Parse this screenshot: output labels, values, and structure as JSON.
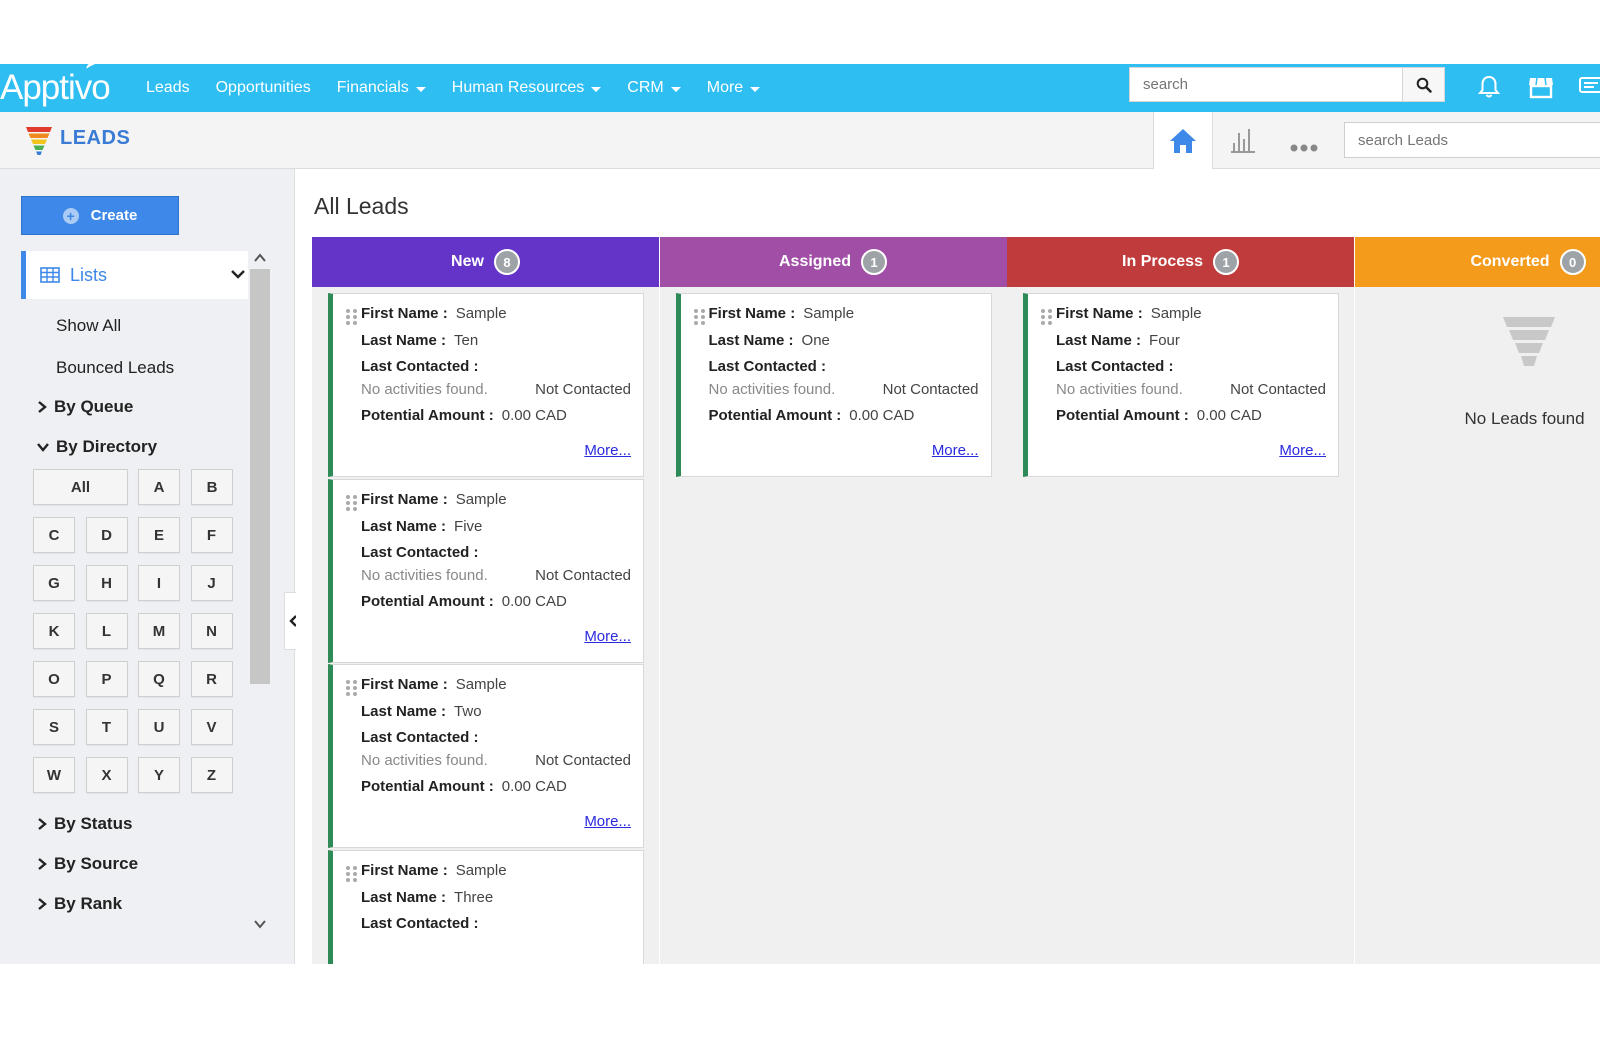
{
  "brand": {
    "logo_text": "Apptivo"
  },
  "topnav": {
    "items": [
      {
        "label": "Leads",
        "has_caret": false
      },
      {
        "label": "Opportunities",
        "has_caret": false
      },
      {
        "label": "Financials",
        "has_caret": true
      },
      {
        "label": "Human Resources",
        "has_caret": true
      },
      {
        "label": "CRM",
        "has_caret": true
      },
      {
        "label": "More",
        "has_caret": true
      }
    ],
    "search_placeholder": "search"
  },
  "subheader": {
    "title": "LEADS",
    "search_placeholder": "search Leads"
  },
  "sidebar": {
    "create_label": "Create",
    "lists_label": "Lists",
    "links": [
      "Show All",
      "Bounced Leads"
    ],
    "groups": {
      "by_queue": "By Queue",
      "by_directory": "By Directory",
      "by_status": "By Status",
      "by_source": "By Source",
      "by_rank": "By Rank"
    },
    "letters": [
      "All",
      "A",
      "B",
      "C",
      "D",
      "E",
      "F",
      "G",
      "H",
      "I",
      "J",
      "K",
      "L",
      "M",
      "N",
      "O",
      "P",
      "Q",
      "R",
      "S",
      "T",
      "U",
      "V",
      "W",
      "X",
      "Y",
      "Z"
    ]
  },
  "main": {
    "title": "All Leads",
    "labels": {
      "first_name": "First Name :",
      "last_name": "Last Name :",
      "last_contacted": "Last Contacted :",
      "no_activities": "No activities found.",
      "potential_amount": "Potential Amount :",
      "more": "More..."
    },
    "columns": [
      {
        "title": "New",
        "count": "8",
        "color": "#6434c9",
        "cards": [
          {
            "first": "Sample",
            "last": "Ten",
            "status": "Not Contacted",
            "amount": "0.00 CAD"
          },
          {
            "first": "Sample",
            "last": "Five",
            "status": "Not Contacted",
            "amount": "0.00 CAD"
          },
          {
            "first": "Sample",
            "last": "Two",
            "status": "Not Contacted",
            "amount": "0.00 CAD"
          },
          {
            "first": "Sample",
            "last": "Three",
            "status": "",
            "amount": ""
          }
        ]
      },
      {
        "title": "Assigned",
        "count": "1",
        "color": "#a04ea6",
        "cards": [
          {
            "first": "Sample",
            "last": "One",
            "status": "Not Contacted",
            "amount": "0.00 CAD"
          }
        ]
      },
      {
        "title": "In Process",
        "count": "1",
        "color": "#c03b3b",
        "cards": [
          {
            "first": "Sample",
            "last": "Four",
            "status": "Not Contacted",
            "amount": "0.00 CAD"
          }
        ]
      },
      {
        "title": "Converted",
        "count": "0",
        "color": "#f49b1b",
        "empty_text": "No Leads found"
      }
    ]
  }
}
